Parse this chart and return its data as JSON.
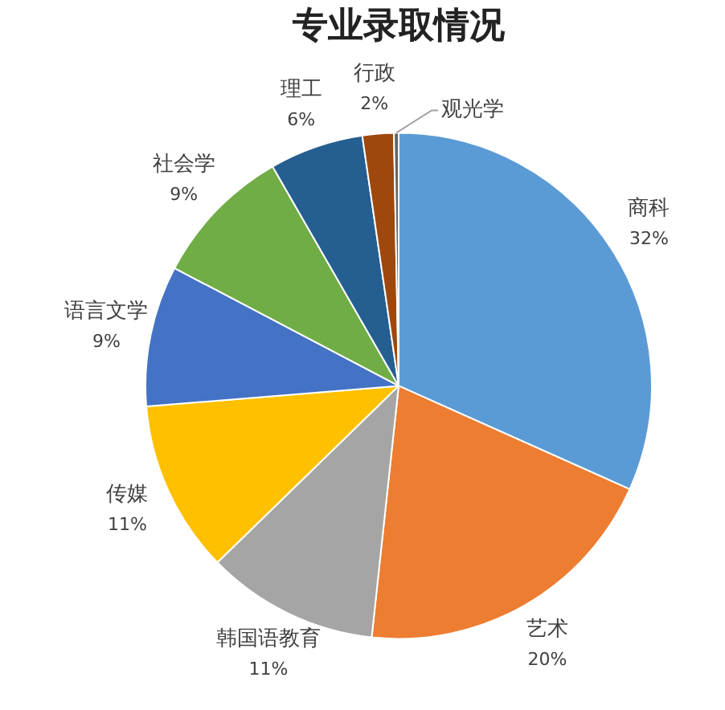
{
  "chart_data": {
    "type": "pie",
    "title": "专业录取情况",
    "categories": [
      "商科",
      "艺术",
      "韩国语教育",
      "传媒",
      "语言文学",
      "社会学",
      "理工",
      "行政",
      "观光学"
    ],
    "values": [
      31.7,
      20,
      11,
      11,
      9,
      9,
      6,
      2,
      0.3
    ],
    "value_labels": [
      "32%",
      "20%",
      "11%",
      "11%",
      "9%",
      "9%",
      "6%",
      "2%",
      null
    ],
    "colors": [
      "#5b9bd5",
      "#ed7d31",
      "#a5a5a5",
      "#ffc000",
      "#4472c4",
      "#70ad47",
      "#255e91",
      "#9e480e",
      "#636363"
    ],
    "legend": false
  }
}
